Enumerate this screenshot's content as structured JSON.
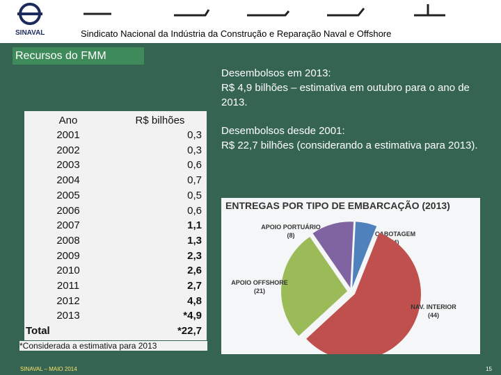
{
  "header": {
    "logo": "SINAVAL",
    "title": "Sindicato Nacional da Indústria da Construção e Reparação Naval e Offshore"
  },
  "section": "Recursos do FMM",
  "notes": [
    "Desembolsos em 2013:",
    "R$ 4,9 bilhões – estimativa  em outubro para o ano de 2013.",
    "Desembolsos desde 2001:",
    "R$ 22,7 bilhões (considerando a estimativa para 2013)."
  ],
  "table": {
    "header": [
      "Ano",
      "R$ bilhões"
    ],
    "rows": [
      [
        "2001",
        "0,3"
      ],
      [
        "2002",
        "0,3"
      ],
      [
        "2003",
        "0,6"
      ],
      [
        "2004",
        "0,7"
      ],
      [
        "2005",
        "0,5"
      ],
      [
        "2006",
        "0,6"
      ],
      [
        "2007",
        "1,1"
      ],
      [
        "2008",
        "1,3"
      ],
      [
        "2009",
        "2,3"
      ],
      [
        "2010",
        "2,6"
      ],
      [
        "2011",
        "2,7"
      ],
      [
        "2012",
        "4,8"
      ],
      [
        "2013",
        "*4,9"
      ]
    ],
    "total": [
      "Total",
      "*22,7"
    ],
    "footnote": "*Considerada a estimativa para 2013"
  },
  "pie": {
    "title": "ENTREGAS POR TIPO DE EMBARCAÇÃO (2013)",
    "slices": [
      {
        "label": "CABOTAGEM",
        "value": 4,
        "value_label": "(4)",
        "color": "#4f81bd"
      },
      {
        "label": "NAV. INTERIOR",
        "value": 44,
        "value_label": "(44)",
        "color": "#c0504d"
      },
      {
        "label": "APOIO OFFSHORE",
        "value": 21,
        "value_label": "(21)",
        "color": "#9bbb59"
      },
      {
        "label": "APOIO PORTUÁRIO",
        "value": 8,
        "value_label": "(8)",
        "color": "#8064a2"
      }
    ]
  },
  "footer": {
    "left": "SINAVAL – MAIO 2014",
    "page": "15"
  }
}
